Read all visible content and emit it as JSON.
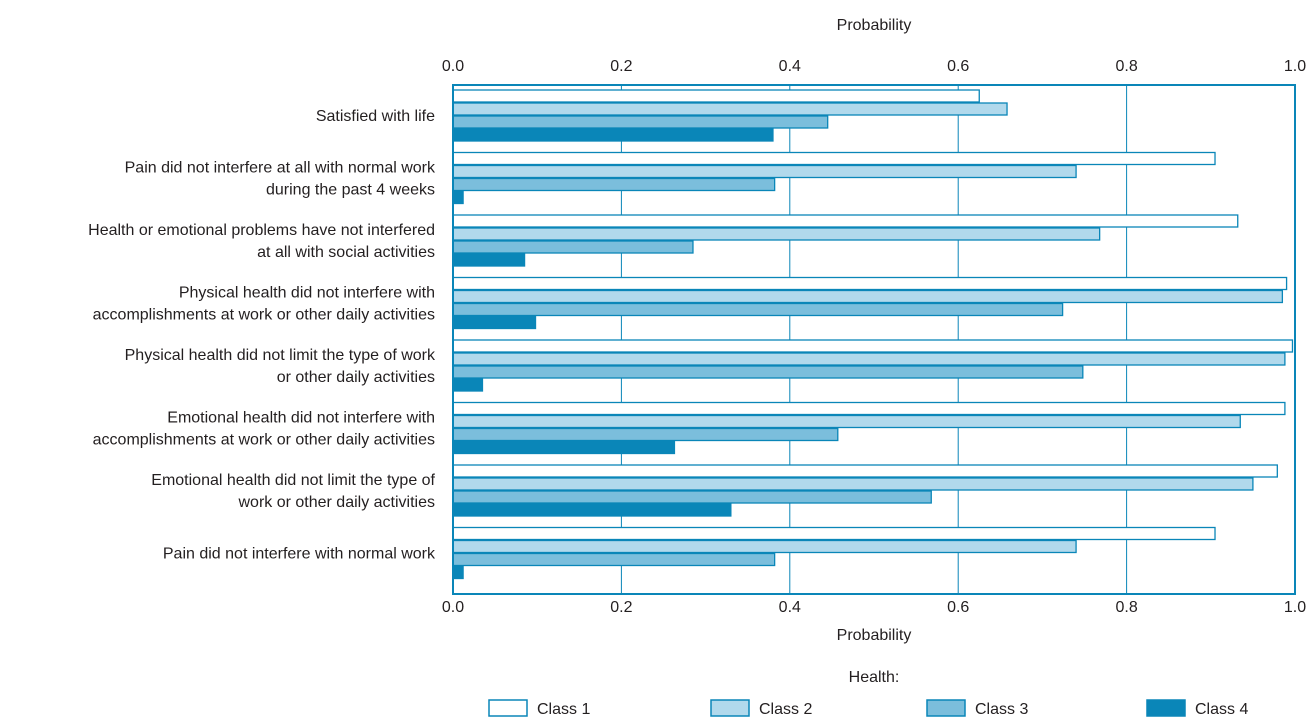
{
  "chart_data": {
    "type": "bar",
    "orientation": "horizontal",
    "title": "",
    "xlabel_top": "Probability",
    "xlabel_bottom": "Probability",
    "xlim": [
      0.0,
      1.0
    ],
    "xticks": [
      "0.0",
      "0.2",
      "0.4",
      "0.6",
      "0.8",
      "1.0"
    ],
    "grid": true,
    "categories": [
      [
        "Satisfied with life"
      ],
      [
        "Pain did not interfere at all with normal work",
        "during the past 4 weeks"
      ],
      [
        "Health or emotional problems have not interfered",
        "at all with social activities"
      ],
      [
        "Physical health did not interfere with",
        "accomplishments at work or other daily activities"
      ],
      [
        "Physical health did not limit the type of work",
        "or other daily activities"
      ],
      [
        "Emotional health did not interfere with",
        "accomplishments at work or other daily activities"
      ],
      [
        "Emotional health did not limit the type of",
        "work or other daily activities"
      ],
      [
        "Pain did not interfere with normal work"
      ]
    ],
    "series": [
      {
        "name": "Class 1",
        "fill": "#ffffff",
        "stroke": "#0a86b8",
        "values": [
          0.625,
          0.905,
          0.932,
          0.99,
          0.997,
          0.988,
          0.979,
          0.905
        ]
      },
      {
        "name": "Class 2",
        "fill": "#b1d9ec",
        "stroke": "#0a86b8",
        "values": [
          0.658,
          0.74,
          0.768,
          0.985,
          0.988,
          0.935,
          0.95,
          0.74
        ]
      },
      {
        "name": "Class 3",
        "fill": "#7bbedc",
        "stroke": "#0a86b8",
        "values": [
          0.445,
          0.382,
          0.285,
          0.724,
          0.748,
          0.457,
          0.568,
          0.382
        ]
      },
      {
        "name": "Class 4",
        "fill": "#0a86b8",
        "stroke": "#0a86b8",
        "values": [
          0.38,
          0.012,
          0.085,
          0.098,
          0.035,
          0.263,
          0.33,
          0.012
        ]
      }
    ],
    "legend": {
      "title": "Health:",
      "placement": "bottom"
    }
  },
  "colors": {
    "frame": "#0a86b8",
    "grid": "#0a86b8",
    "text": "#231f20"
  }
}
